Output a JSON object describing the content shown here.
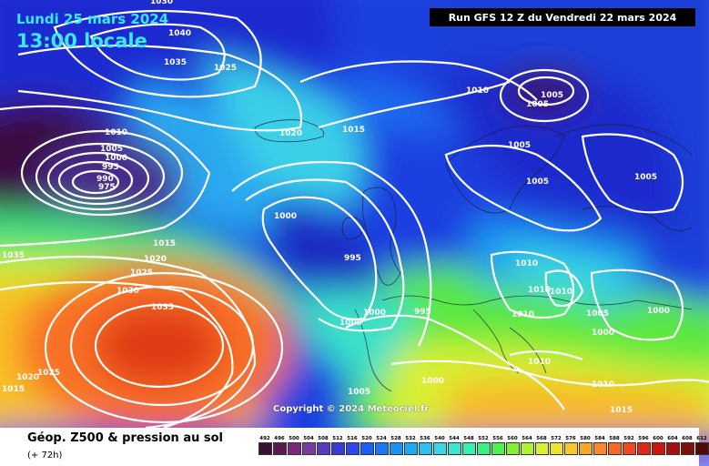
{
  "header": {
    "run_info": "Run GFS 12 Z du Vendredi 22 mars 2024",
    "date_line": "Lundi 25 mars 2024",
    "time_line": "13:00 locale"
  },
  "map": {
    "copyright": "Copyright © 2024 Meteociel.fr",
    "pressure_labels": [
      "1030",
      "1040",
      "1035",
      "1025",
      "1010",
      "1005",
      "1005",
      "1020",
      "1015",
      "1005",
      "1005",
      "1005",
      "1010",
      "1005",
      "1000",
      "995",
      "990",
      "975",
      "1035",
      "1015",
      "1020",
      "1025",
      "1030",
      "1035",
      "1000",
      "995",
      "1005",
      "1000",
      "995",
      "1010",
      "1010",
      "1010",
      "1010",
      "1005",
      "1000",
      "1000",
      "1025",
      "1020",
      "1015",
      "1005",
      "1000",
      "1010",
      "1010",
      "1015"
    ]
  },
  "footer": {
    "title": "Géop. Z500 & pression au sol",
    "subtitle": "(+ 72h)"
  },
  "legend": {
    "labels": [
      "492",
      "496",
      "500",
      "504",
      "508",
      "512",
      "516",
      "520",
      "524",
      "528",
      "532",
      "536",
      "540",
      "544",
      "548",
      "552",
      "556",
      "560",
      "564",
      "568",
      "572",
      "576",
      "580",
      "584",
      "588",
      "592",
      "596",
      "600",
      "604",
      "608",
      "612"
    ],
    "colors": [
      "#3a1030",
      "#5a1a50",
      "#7a2a7a",
      "#7a3aa0",
      "#5a3ac0",
      "#3a3ad8",
      "#2a4af0",
      "#1a60f8",
      "#1a78f8",
      "#1a90f8",
      "#1aaaf8",
      "#2ac0f0",
      "#3ad6e8",
      "#3ae6d0",
      "#3af0b0",
      "#3af080",
      "#50f050",
      "#80f030",
      "#b0f030",
      "#d8f030",
      "#f0e030",
      "#f8c828",
      "#f8a828",
      "#f88828",
      "#f86828",
      "#f04820",
      "#e02818",
      "#c81810",
      "#a81010",
      "#801008",
      "#500808"
    ]
  }
}
